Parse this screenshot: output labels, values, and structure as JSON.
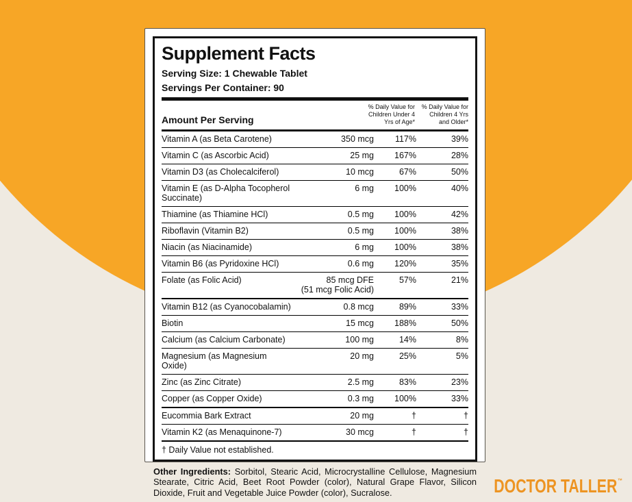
{
  "background": {
    "circle_color": "#F7A626",
    "base_color": "#EFEAE1"
  },
  "panel": {
    "title": "Supplement Facts",
    "serving_size": "Serving Size: 1 Chewable Tablet",
    "servings_per_container": "Servings Per Container: 90",
    "amount_header": "Amount Per Serving",
    "dv_header_under4": "% Daily Value for\nChildren Under 4\nYrs of Age*",
    "dv_header_over4": "% Daily Value for\nChildren 4 Yrs\nand Older*",
    "rows": [
      {
        "name": "Vitamin A (as Beta Carotene)",
        "amount": "350 mcg",
        "dv1": "117%",
        "dv2": "39%"
      },
      {
        "name": "Vitamin C (as Ascorbic Acid)",
        "amount": "25 mg",
        "dv1": "167%",
        "dv2": "28%"
      },
      {
        "name": "Vitamin D3 (as Cholecalciferol)",
        "amount": "10 mcg",
        "dv1": "67%",
        "dv2": "50%"
      },
      {
        "name": "Vitamin E (as D-Alpha Tocopherol Succinate)",
        "amount": "6 mg",
        "dv1": "100%",
        "dv2": "40%"
      },
      {
        "name": "Thiamine (as Thiamine HCl)",
        "amount": "0.5 mg",
        "dv1": "100%",
        "dv2": "42%"
      },
      {
        "name": "Riboflavin (Vitamin B2)",
        "amount": "0.5 mg",
        "dv1": "100%",
        "dv2": "38%"
      },
      {
        "name": "Niacin (as Niacinamide)",
        "amount": "6 mg",
        "dv1": "100%",
        "dv2": "38%"
      },
      {
        "name": "Vitamin B6 (as Pyridoxine HCl)",
        "amount": "0.6 mg",
        "dv1": "120%",
        "dv2": "35%"
      },
      {
        "name": "Folate (as Folic Acid)",
        "amount": "85 mcg DFE",
        "amount_note": "(51 mcg Folic Acid)",
        "dv1": "57%",
        "dv2": "21%"
      },
      {
        "name": "Vitamin B12 (as Cyanocobalamin)",
        "amount": "0.8 mcg",
        "dv1": "89%",
        "dv2": "33%"
      },
      {
        "name": "Biotin",
        "amount": "15 mcg",
        "dv1": "188%",
        "dv2": "50%"
      },
      {
        "name": "Calcium (as Calcium Carbonate)",
        "amount": "100 mg",
        "dv1": "14%",
        "dv2": "8%"
      },
      {
        "name": "Magnesium (as Magnesium Oxide)",
        "amount": "20 mg",
        "dv1": "25%",
        "dv2": "5%"
      },
      {
        "name": "Zinc (as Zinc Citrate)",
        "amount": "2.5 mg",
        "dv1": "83%",
        "dv2": "23%"
      },
      {
        "name": "Copper (as Copper Oxide)",
        "amount": "0.3 mg",
        "dv1": "100%",
        "dv2": "33%"
      },
      {
        "name": "Eucommia Bark Extract",
        "amount": "20 mg",
        "dv1": "†",
        "dv2": "†"
      },
      {
        "name": "Vitamin K2 (as Menaquinone-7)",
        "amount": "30 mcg",
        "dv1": "†",
        "dv2": "†"
      }
    ],
    "footnote": "† Daily Value not established."
  },
  "other_ingredients": {
    "label": "Other Ingredients:",
    "text": " Sorbitol, Stearic Acid, Microcrystalline Cellulose, Magnesium Stearate, Citric Acid, Beet Root Powder (color), Natural Grape Flavor, Silicon Dioxide, Fruit and Vegetable Juice Powder (color), Sucralose."
  },
  "brand": {
    "name": "DOCTOR TALLER",
    "trademark": "™",
    "color": "#ED9422"
  }
}
